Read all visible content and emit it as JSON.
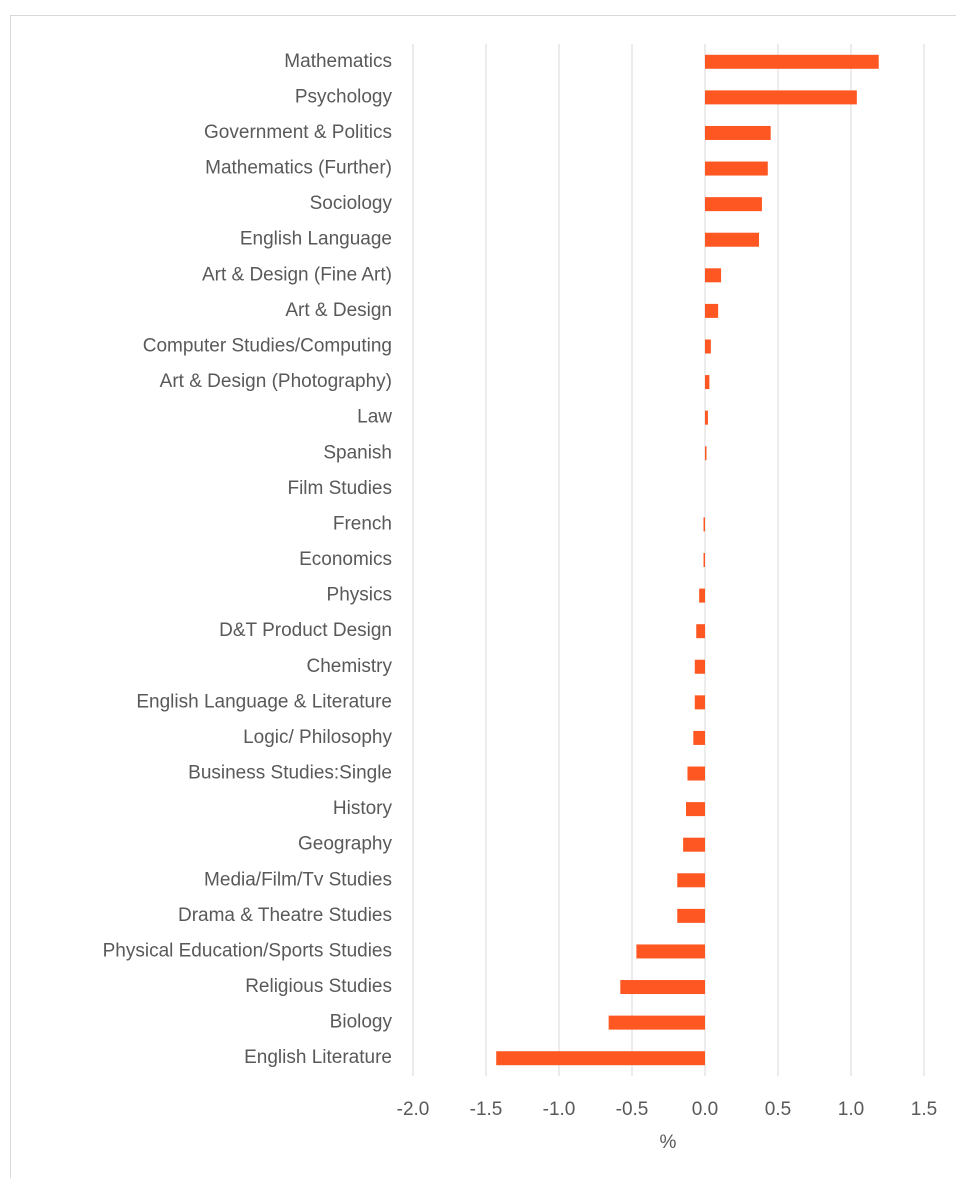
{
  "chart_data": {
    "type": "bar",
    "orientation": "horizontal",
    "categories": [
      "Mathematics",
      "Psychology",
      "Government & Politics",
      "Mathematics (Further)",
      "Sociology",
      "English Language",
      "Art & Design (Fine Art)",
      "Art & Design",
      "Computer Studies/Computing",
      "Art & Design (Photography)",
      "Law",
      "Spanish",
      "Film Studies",
      "French",
      "Economics",
      "Physics",
      "D&T Product Design",
      "Chemistry",
      "English Language & Literature",
      "Logic/ Philosophy",
      "Business Studies:Single",
      "History",
      "Geography",
      "Media/Film/Tv Studies",
      "Drama & Theatre Studies",
      "Physical Education/Sports Studies",
      "Religious Studies",
      "Biology",
      "English Literature"
    ],
    "values": [
      1.19,
      1.04,
      0.45,
      0.43,
      0.39,
      0.37,
      0.11,
      0.09,
      0.04,
      0.03,
      0.02,
      0.01,
      0,
      -0.01,
      -0.01,
      -0.04,
      -0.06,
      -0.07,
      -0.07,
      -0.08,
      -0.12,
      -0.13,
      -0.15,
      -0.19,
      -0.19,
      -0.47,
      -0.58,
      -0.66,
      -1.43
    ],
    "color": "#ff5722",
    "xlabel": "%",
    "xlim": [
      -2.0,
      1.5
    ],
    "xticks": [
      {
        "value": -2.0,
        "label": "-2.0"
      },
      {
        "value": -1.5,
        "label": "-1.5"
      },
      {
        "value": -1.0,
        "label": "-1.0"
      },
      {
        "value": -0.5,
        "label": "-0.5"
      },
      {
        "value": 0,
        "label": "0.0"
      },
      {
        "value": 0.5,
        "label": "0.5"
      },
      {
        "value": 1.0,
        "label": "1.0"
      },
      {
        "value": 1.5,
        "label": "1.5"
      }
    ],
    "grid": true
  }
}
